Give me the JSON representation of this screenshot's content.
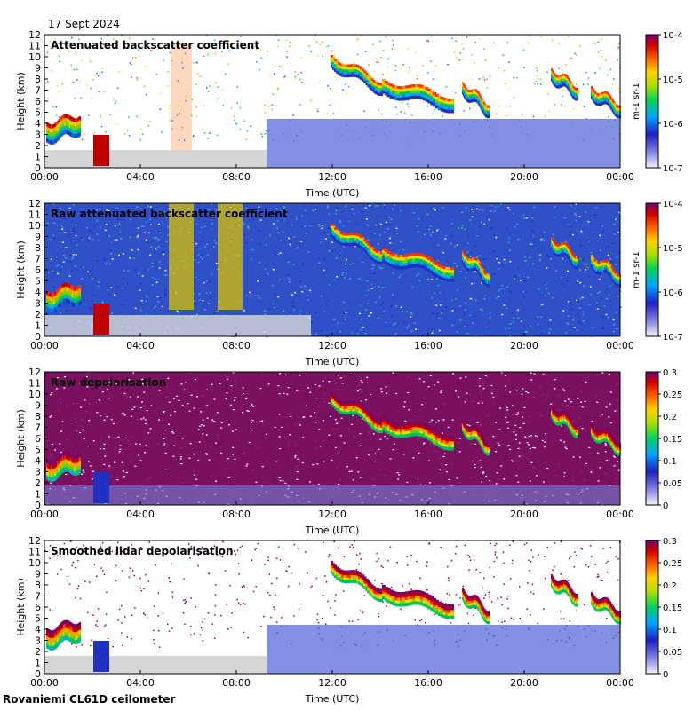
{
  "header": {
    "date": "17 Sept 2024"
  },
  "footer": {
    "instrument": "Rovaniemi CL61D ceilometer"
  },
  "chart_data": [
    {
      "type": "heatmap",
      "title": "Attenuated backscatter coefficient",
      "xlabel": "Time (UTC)",
      "ylabel": "Height (km)",
      "x_ticks": [
        "00:00",
        "04:00",
        "08:00",
        "12:00",
        "16:00",
        "20:00",
        "00:00"
      ],
      "y_ticks": [
        "0",
        "1",
        "2",
        "3",
        "4",
        "5",
        "6",
        "7",
        "8",
        "9",
        "10",
        "11",
        "12"
      ],
      "ylim": [
        0,
        12
      ],
      "colorbar": {
        "scale": "log",
        "ticks": [
          "10-7",
          "10-6",
          "10-5",
          "10-4"
        ],
        "label": "m-1 sr-1",
        "range": [
          1e-07,
          0.0001
        ]
      },
      "features": [
        {
          "name": "low cloud",
          "time_h": [
            0.0,
            1.6
          ],
          "height_km": [
            1.5,
            4.8
          ]
        },
        {
          "name": "low cloud",
          "time_h": [
            2.0,
            2.6
          ],
          "height_km": [
            0.0,
            3.0
          ]
        },
        {
          "name": "cirrus",
          "time_h": [
            12.0,
            18.3
          ],
          "height_km": [
            4.5,
            9.5
          ]
        },
        {
          "name": "cirrus",
          "time_h": [
            21.2,
            24.0
          ],
          "height_km": [
            4.5,
            8.5
          ]
        }
      ]
    },
    {
      "type": "heatmap",
      "title": "Raw attenuated backscatter coefficient",
      "xlabel": "Time (UTC)",
      "ylabel": "Height (km)",
      "x_ticks": [
        "00:00",
        "04:00",
        "08:00",
        "12:00",
        "16:00",
        "20:00",
        "00:00"
      ],
      "y_ticks": [
        "0",
        "1",
        "2",
        "3",
        "4",
        "5",
        "6",
        "7",
        "8",
        "9",
        "10",
        "11",
        "12"
      ],
      "ylim": [
        0,
        12
      ],
      "colorbar": {
        "scale": "log",
        "ticks": [
          "10-7",
          "10-6",
          "10-5",
          "10-4"
        ],
        "label": "m-1 sr-1",
        "range": [
          1e-07,
          0.0001
        ]
      }
    },
    {
      "type": "heatmap",
      "title": "Raw depolarisation",
      "xlabel": "Time (UTC)",
      "ylabel": "Height (km)",
      "x_ticks": [
        "00:00",
        "04:00",
        "08:00",
        "12:00",
        "16:00",
        "20:00",
        "00:00"
      ],
      "y_ticks": [
        "0",
        "1",
        "2",
        "3",
        "4",
        "5",
        "6",
        "7",
        "8",
        "9",
        "10",
        "11",
        "12"
      ],
      "ylim": [
        0,
        12
      ],
      "colorbar": {
        "scale": "linear",
        "ticks": [
          "0",
          "0.05",
          "0.1",
          "0.15",
          "0.2",
          "0.25",
          "0.3"
        ],
        "label": "",
        "range": [
          0,
          0.3
        ]
      }
    },
    {
      "type": "heatmap",
      "title": "Smoothed lidar depolarisation",
      "xlabel": "Time (UTC)",
      "ylabel": "Height (km)",
      "x_ticks": [
        "00:00",
        "04:00",
        "08:00",
        "12:00",
        "16:00",
        "20:00",
        "00:00"
      ],
      "y_ticks": [
        "0",
        "1",
        "2",
        "3",
        "4",
        "5",
        "6",
        "7",
        "8",
        "9",
        "10",
        "11",
        "12"
      ],
      "ylim": [
        0,
        12
      ],
      "colorbar": {
        "scale": "linear",
        "ticks": [
          "0",
          "0.05",
          "0.1",
          "0.15",
          "0.2",
          "0.25",
          "0.3"
        ],
        "label": "",
        "range": [
          0,
          0.3
        ]
      }
    }
  ]
}
